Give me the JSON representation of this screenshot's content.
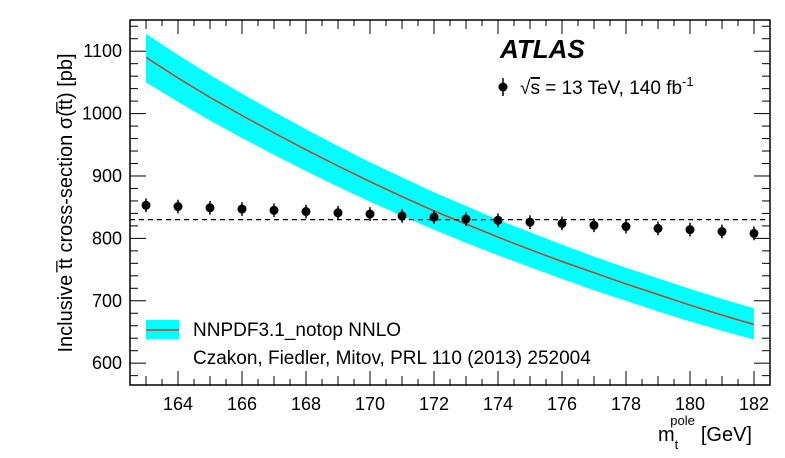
{
  "chart_data": {
    "type": "scatter",
    "experiment_label": "ATLAS",
    "xlabel_main": "m",
    "xlabel_sub": "t",
    "xlabel_sup": "pole",
    "xlabel_unit": "[GeV]",
    "ylabel": "Inclusive t̅t cross-section σ(t̅t) [pb]",
    "xlim": [
      162.5,
      182.5
    ],
    "ylim": [
      565,
      1150
    ],
    "x_ticks": [
      164,
      166,
      168,
      170,
      172,
      174,
      176,
      178,
      180,
      182
    ],
    "y_ticks": [
      600,
      700,
      800,
      900,
      1000,
      1100
    ],
    "x_tick_labels": [
      "164",
      "166",
      "168",
      "170",
      "172",
      "174",
      "176",
      "178",
      "180",
      "182"
    ],
    "y_tick_labels": [
      "600",
      "700",
      "800",
      "900",
      "1000",
      "1100"
    ],
    "data_series": {
      "legend": "√s = 13 TeV, 140 fb⁻¹",
      "legend_parts": {
        "sqrt": "√",
        "s": "s",
        "rest": " = 13 TeV, 140 fb",
        "sup": "-1"
      },
      "x": [
        163,
        164,
        165,
        166,
        167,
        168,
        169,
        170,
        171,
        172,
        173,
        174,
        175,
        176,
        177,
        178,
        179,
        180,
        181,
        182
      ],
      "y": [
        853,
        851,
        849,
        847,
        845,
        843,
        841,
        839,
        836,
        834,
        831,
        829,
        826,
        824,
        821,
        819,
        816,
        814,
        811,
        808
      ],
      "yerr": [
        11,
        11,
        11,
        11,
        11,
        11,
        11,
        11,
        11,
        11,
        11,
        11,
        11,
        11,
        11,
        11,
        11,
        11,
        11,
        11
      ],
      "color": "#000000"
    },
    "reference_line": {
      "y": 830,
      "style": "dashed",
      "color": "#000000"
    },
    "theory": {
      "legend": "NNPDF3.1_notop NNLO",
      "citation": "Czakon, Fiedler, Mitov, PRL 110 (2013) 252004",
      "x": [
        163,
        164,
        165,
        166,
        167,
        168,
        169,
        170,
        171,
        172,
        173,
        174,
        175,
        176,
        177,
        178,
        179,
        180,
        181,
        182
      ],
      "central": [
        1090,
        1057,
        1026,
        997,
        969,
        942,
        916,
        891,
        867,
        844,
        823,
        802,
        782,
        763,
        745,
        727,
        710,
        693,
        677,
        662
      ],
      "lower": [
        1050,
        1019,
        989,
        961,
        934,
        908,
        883,
        859,
        836,
        814,
        793,
        773,
        754,
        735,
        717,
        700,
        683,
        667,
        652,
        638
      ],
      "upper": [
        1128,
        1094,
        1062,
        1032,
        1003,
        975,
        948,
        922,
        898,
        874,
        852,
        830,
        810,
        790,
        771,
        753,
        736,
        719,
        703,
        688
      ],
      "band_color": "#00ffff",
      "line_color": "#c04020"
    }
  }
}
